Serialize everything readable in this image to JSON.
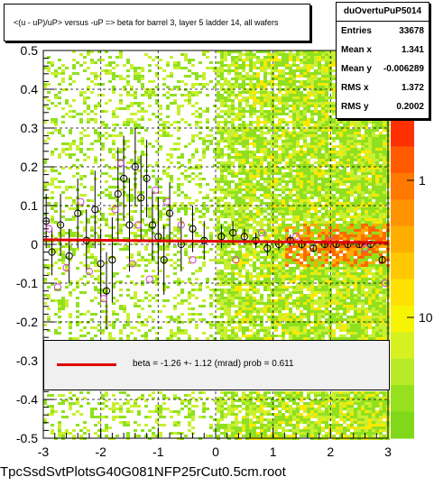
{
  "chart_data": {
    "type": "scatter",
    "title": "<(u - uP)/uP> versus  -uP => beta for barrel 3, layer 5 ladder 14, all wafers",
    "xlim": [
      -3,
      3
    ],
    "ylim": [
      -0.5,
      0.5
    ],
    "x_ticks": [
      "-3",
      "-2",
      "-1",
      "0",
      "1",
      "2",
      "3"
    ],
    "y_ticks": [
      "-0.5",
      "-0.4",
      "-0.3",
      "-0.2",
      "-0.1",
      "0",
      "0.1",
      "0.2",
      "0.3",
      "0.4",
      "0.5"
    ],
    "z_ticks": [
      "1",
      "10"
    ],
    "grid": true,
    "colz": true,
    "stats": {
      "name": "duOvertuPuP5014",
      "rows": [
        {
          "label": "Entries",
          "value": "33678"
        },
        {
          "label": "Mean x",
          "value": "1.341"
        },
        {
          "label": "Mean y",
          "value": "-0.006289"
        },
        {
          "label": "RMS x",
          "value": "1.372"
        },
        {
          "label": "RMS y",
          "value": "0.2002"
        }
      ]
    },
    "fit": {
      "text": "beta =   -1.26 +-  1.12 (mrad) prob = 0.611",
      "slope": -0.00126,
      "intercept": 0.008,
      "color": "#e00000"
    },
    "profile_points": [
      {
        "x": -2.95,
        "y": 0.06,
        "err": 0.07
      },
      {
        "x": -2.85,
        "y": -0.02,
        "err": 0.06
      },
      {
        "x": -2.7,
        "y": 0.05,
        "err": 0.08
      },
      {
        "x": -2.55,
        "y": -0.03,
        "err": 0.07
      },
      {
        "x": -2.4,
        "y": 0.08,
        "err": 0.09
      },
      {
        "x": -2.25,
        "y": 0.01,
        "err": 0.08
      },
      {
        "x": -2.1,
        "y": 0.09,
        "err": 0.1
      },
      {
        "x": -2.0,
        "y": -0.05,
        "err": 0.09
      },
      {
        "x": -1.9,
        "y": -0.12,
        "err": 0.1
      },
      {
        "x": -1.8,
        "y": -0.04,
        "err": 0.11
      },
      {
        "x": -1.7,
        "y": 0.13,
        "err": 0.12
      },
      {
        "x": -1.6,
        "y": 0.17,
        "err": 0.11
      },
      {
        "x": -1.5,
        "y": 0.05,
        "err": 0.12
      },
      {
        "x": -1.4,
        "y": 0.2,
        "err": 0.1
      },
      {
        "x": -1.3,
        "y": 0.12,
        "err": 0.11
      },
      {
        "x": -1.2,
        "y": 0.17,
        "err": 0.1
      },
      {
        "x": -1.1,
        "y": 0.05,
        "err": 0.09
      },
      {
        "x": -1.0,
        "y": 0.02,
        "err": 0.1
      },
      {
        "x": -0.9,
        "y": -0.04,
        "err": 0.09
      },
      {
        "x": -0.8,
        "y": 0.08,
        "err": 0.08
      },
      {
        "x": -0.6,
        "y": 0.0,
        "err": 0.07
      },
      {
        "x": -0.4,
        "y": 0.04,
        "err": 0.06
      },
      {
        "x": -0.2,
        "y": 0.01,
        "err": 0.05
      },
      {
        "x": 0.1,
        "y": 0.02,
        "err": 0.03
      },
      {
        "x": 0.3,
        "y": 0.03,
        "err": 0.03
      },
      {
        "x": 0.5,
        "y": 0.02,
        "err": 0.02
      },
      {
        "x": 0.7,
        "y": 0.01,
        "err": 0.02
      },
      {
        "x": 0.9,
        "y": -0.01,
        "err": 0.02
      },
      {
        "x": 1.1,
        "y": 0.0,
        "err": 0.015
      },
      {
        "x": 1.3,
        "y": 0.01,
        "err": 0.015
      },
      {
        "x": 1.5,
        "y": 0.0,
        "err": 0.012
      },
      {
        "x": 1.7,
        "y": -0.01,
        "err": 0.01
      },
      {
        "x": 1.9,
        "y": 0.0,
        "err": 0.01
      },
      {
        "x": 2.1,
        "y": 0.0,
        "err": 0.01
      },
      {
        "x": 2.3,
        "y": 0.0,
        "err": 0.008
      },
      {
        "x": 2.5,
        "y": 0.0,
        "err": 0.008
      },
      {
        "x": 2.7,
        "y": 0.0,
        "err": 0.008
      },
      {
        "x": 2.9,
        "y": -0.04,
        "err": 0.01
      }
    ],
    "mean_points": [
      {
        "x": -2.9,
        "y": 0.04
      },
      {
        "x": -2.75,
        "y": -0.11
      },
      {
        "x": -2.6,
        "y": -0.06
      },
      {
        "x": -2.35,
        "y": 0.11
      },
      {
        "x": -2.2,
        "y": -0.07
      },
      {
        "x": -1.95,
        "y": -0.14
      },
      {
        "x": -1.75,
        "y": 0.09
      },
      {
        "x": -1.65,
        "y": 0.21
      },
      {
        "x": -1.45,
        "y": -0.05
      },
      {
        "x": -1.35,
        "y": 0.05
      },
      {
        "x": -1.15,
        "y": -0.09
      },
      {
        "x": -1.05,
        "y": 0.14
      },
      {
        "x": -0.85,
        "y": 0.11
      },
      {
        "x": -0.6,
        "y": 0.05
      },
      {
        "x": -0.4,
        "y": -0.04
      },
      {
        "x": 0.35,
        "y": -0.04
      },
      {
        "x": 0.8,
        "y": 0.03
      },
      {
        "x": 1.4,
        "y": 0.02
      },
      {
        "x": 2.0,
        "y": 0.01
      },
      {
        "x": 2.6,
        "y": -0.01
      },
      {
        "x": 2.95,
        "y": -0.1
      }
    ]
  },
  "footer": {
    "filename": "TpcSsdSvtPlotsG40G081NFP25rCut0.5cm.root"
  }
}
